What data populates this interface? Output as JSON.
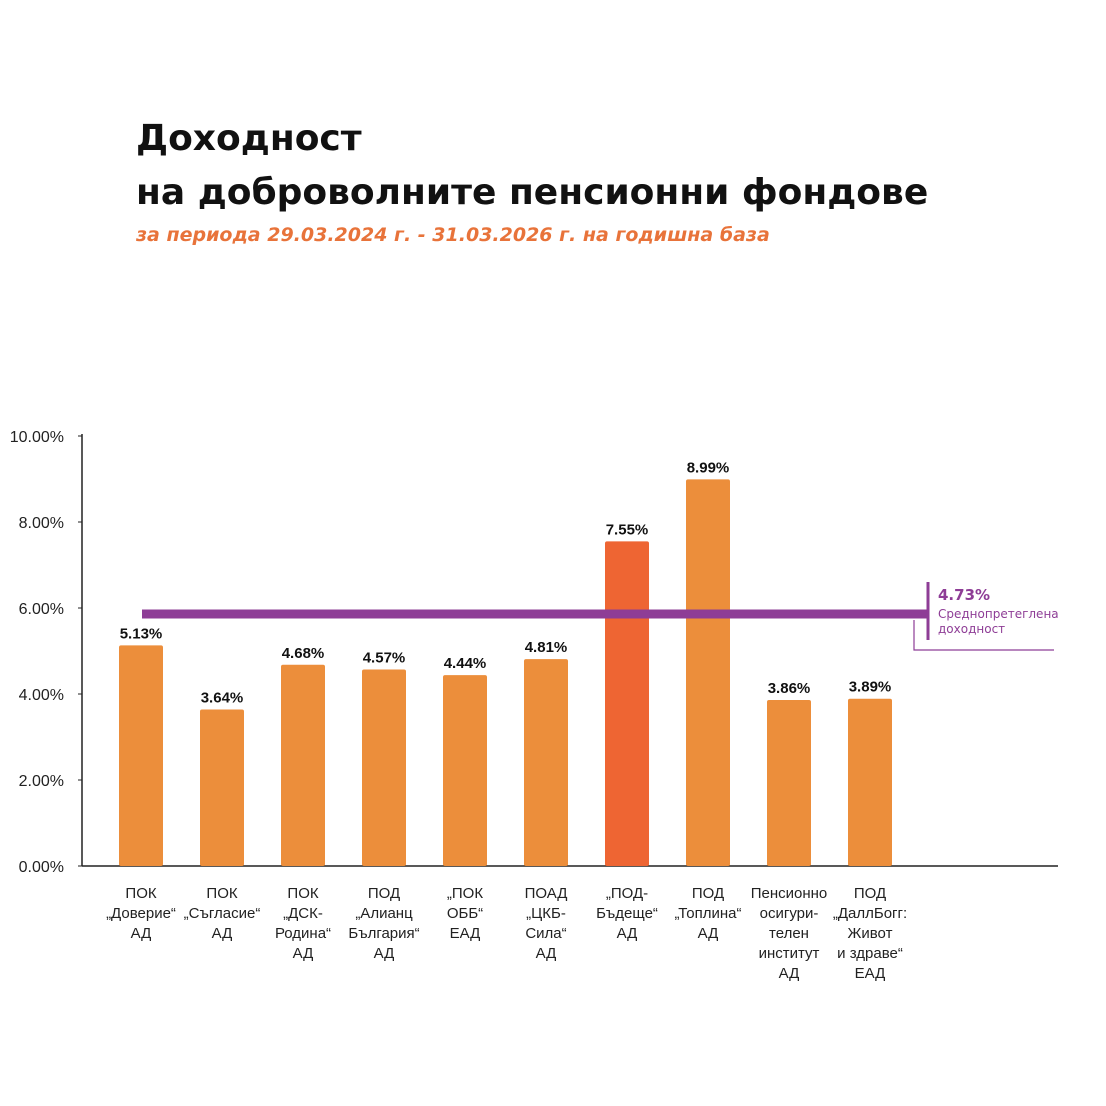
{
  "title": {
    "line1": "Доходност",
    "line2": "на доброволните пенсионни фондове",
    "subtitle": "за периода 29.03.2024 г. - 31.03.2026 г. на годишна база"
  },
  "colors": {
    "bar": "#ec8e3b",
    "highlight_bar": "#ee6533",
    "average_line": "#8e3d96",
    "subtitle": "#e8733a"
  },
  "chart_data": {
    "type": "bar",
    "categories": [
      "ПОК „Доверие“ АД",
      "ПОК „Съгласие“ АД",
      "ПОК „ДСК-Родина“ АД",
      "ПОД „Алианц България“ АД",
      "„ПОК ОББ“ ЕАД",
      "ПОАД „ЦКБ-Сила“ АД",
      "„ПОД-Бъдеще“ АД",
      "ПОД „Топлина“ АД",
      "Пенсионно осигурителен институт АД",
      "ПОД „ДаллБогг: Живот и здраве“ ЕАД"
    ],
    "category_lines": [
      [
        "ПОК",
        "„Доверие“",
        "АД"
      ],
      [
        "ПОК",
        "„Съгласие“",
        "АД"
      ],
      [
        "ПОК",
        "„ДСК-",
        "Родина“",
        "АД"
      ],
      [
        "ПОД",
        "„Алианц",
        "България“",
        "АД"
      ],
      [
        "„ПОК",
        "ОББ“",
        "ЕАД"
      ],
      [
        "ПОАД",
        "„ЦКБ-",
        "Сила“",
        "АД"
      ],
      [
        "„ПОД-",
        "Бъдеще“",
        "АД"
      ],
      [
        "ПОД",
        "„Топлина“",
        "АД"
      ],
      [
        "Пенсионно",
        "осигури-",
        "телен",
        "институт",
        "АД"
      ],
      [
        "ПОД",
        "„ДаллБогг:",
        "Живот",
        "и здраве“",
        "ЕАД"
      ]
    ],
    "values": [
      5.13,
      3.64,
      4.68,
      4.57,
      4.44,
      4.81,
      7.55,
      8.99,
      3.86,
      3.89
    ],
    "value_labels": [
      "5.13%",
      "3.64%",
      "4.68%",
      "4.57%",
      "4.44%",
      "4.81%",
      "7.55%",
      "8.99%",
      "3.86%",
      "3.89%"
    ],
    "highlight_index": 6,
    "ylim": [
      0,
      10
    ],
    "yticks": [
      "0.00%",
      "2.00%",
      "4.00%",
      "6.00%",
      "8.00%",
      "10.00%"
    ],
    "average": {
      "value_label": "4.73%",
      "label_lines": [
        "Среднопретеглена",
        "доходност"
      ]
    },
    "grid": false,
    "legend": "none"
  }
}
